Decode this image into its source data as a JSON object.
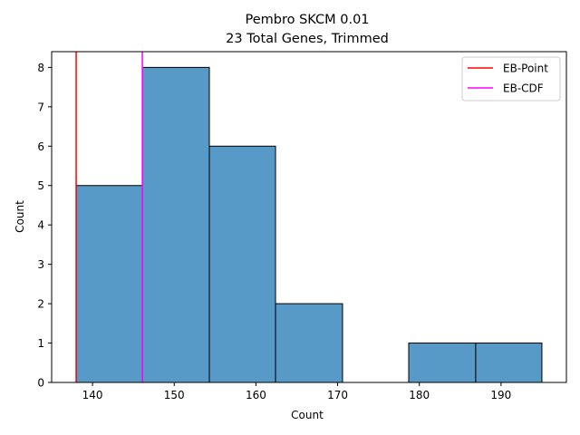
{
  "chart_data": {
    "type": "bar",
    "subtype": "histogram",
    "title": "Pembro SKCM 0.01",
    "subtitle": "23 Total Genes, Trimmed",
    "xlabel": "Count",
    "ylabel": "Count",
    "xlim": [
      135,
      198
    ],
    "ylim": [
      0,
      8.4
    ],
    "xticks": [
      140,
      150,
      160,
      170,
      180,
      190
    ],
    "yticks": [
      0,
      1,
      2,
      3,
      4,
      5,
      6,
      7,
      8
    ],
    "bins": [
      {
        "start": 138.0,
        "end": 146.1,
        "count": 5
      },
      {
        "start": 146.1,
        "end": 154.3,
        "count": 8
      },
      {
        "start": 154.3,
        "end": 162.4,
        "count": 6
      },
      {
        "start": 162.4,
        "end": 170.6,
        "count": 2
      },
      {
        "start": 170.6,
        "end": 178.7,
        "count": 0
      },
      {
        "start": 178.7,
        "end": 186.9,
        "count": 1
      },
      {
        "start": 186.9,
        "end": 195.0,
        "count": 1
      }
    ],
    "bar_color": "#5799c7",
    "vlines": [
      {
        "name": "EB-Point",
        "x": 138.0,
        "color": "#ff0000"
      },
      {
        "name": "EB-CDF",
        "x": 146.1,
        "color": "#ff00ff"
      }
    ],
    "legend": {
      "location": "top-right",
      "entries": [
        "EB-Point",
        "EB-CDF"
      ]
    }
  }
}
